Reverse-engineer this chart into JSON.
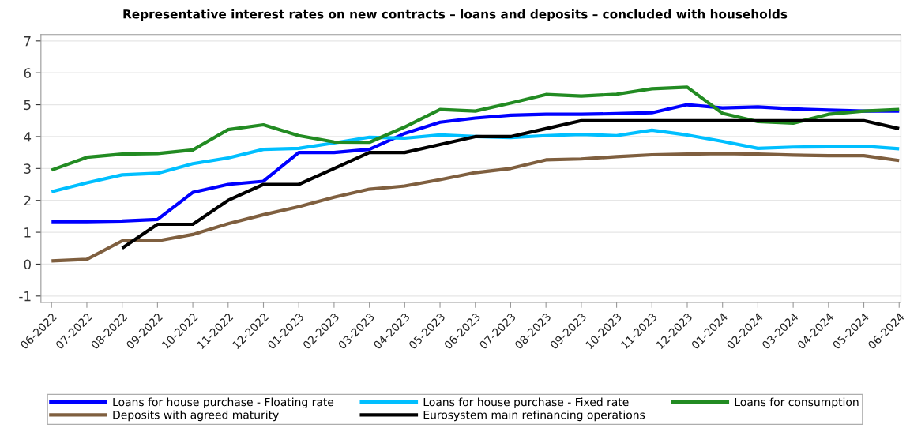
{
  "chart_data": {
    "type": "line",
    "title": "Representative interest rates on new contracts – loans and deposits – concluded with households",
    "categories": [
      "06-2022",
      "07-2022",
      "08-2022",
      "09-2022",
      "10-2022",
      "11-2022",
      "12-2022",
      "01-2023",
      "02-2023",
      "03-2023",
      "04-2023",
      "05-2023",
      "06-2023",
      "07-2023",
      "08-2023",
      "09-2023",
      "10-2023",
      "11-2023",
      "12-2023",
      "01-2024",
      "02-2024",
      "03-2024",
      "04-2024",
      "05-2024",
      "06-2024"
    ],
    "series": [
      {
        "name": "Loans for house purchase - Floating rate",
        "color": "#0000ff",
        "values": [
          1.33,
          1.33,
          1.35,
          1.4,
          2.25,
          2.5,
          2.6,
          3.5,
          3.5,
          3.6,
          4.1,
          4.45,
          4.58,
          4.67,
          4.7,
          4.7,
          4.72,
          4.75,
          5.0,
          4.9,
          4.93,
          4.87,
          4.83,
          4.8,
          4.8
        ]
      },
      {
        "name": "Loans for house purchase - Fixed rate",
        "color": "#00bfff",
        "values": [
          2.27,
          2.55,
          2.8,
          2.85,
          3.15,
          3.33,
          3.6,
          3.63,
          3.8,
          3.98,
          3.95,
          4.05,
          4.0,
          3.97,
          4.03,
          4.07,
          4.03,
          4.2,
          4.05,
          3.85,
          3.63,
          3.67,
          3.68,
          3.7,
          3.62
        ]
      },
      {
        "name": "Loans for consumption",
        "color": "#228b22",
        "values": [
          2.95,
          3.35,
          3.45,
          3.47,
          3.58,
          4.22,
          4.37,
          4.03,
          3.83,
          3.82,
          4.3,
          4.85,
          4.8,
          5.05,
          5.32,
          5.27,
          5.33,
          5.5,
          5.55,
          4.73,
          4.47,
          4.42,
          4.7,
          4.8,
          4.85
        ]
      },
      {
        "name": "Deposits with agreed maturity",
        "color": "#7f5f3f",
        "values": [
          0.1,
          0.15,
          0.73,
          0.73,
          0.93,
          1.27,
          1.55,
          1.8,
          2.1,
          2.35,
          2.45,
          2.65,
          2.87,
          3.0,
          3.27,
          3.3,
          3.37,
          3.43,
          3.45,
          3.47,
          3.45,
          3.42,
          3.4,
          3.4,
          3.25
        ]
      },
      {
        "name": "Eurosystem main refinancing operations",
        "color": "#000000",
        "values": [
          null,
          null,
          0.5,
          1.25,
          1.25,
          2.0,
          2.5,
          2.5,
          3.0,
          3.5,
          3.5,
          3.75,
          4.0,
          4.0,
          4.25,
          4.5,
          4.5,
          4.5,
          4.5,
          4.5,
          4.5,
          4.5,
          4.5,
          4.5,
          4.25
        ]
      }
    ],
    "ylim": [
      -1.2,
      7.2
    ],
    "yticks": [
      -1,
      0,
      1,
      2,
      3,
      4,
      5,
      6,
      7
    ],
    "grid": "y",
    "legend": "bottom",
    "marker": "none",
    "line_style": "solid"
  }
}
